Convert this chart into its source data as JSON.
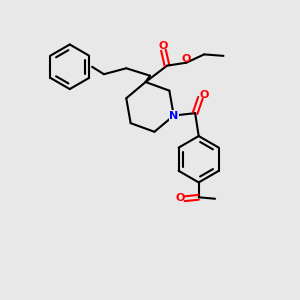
{
  "bg_color": "#e8e8e8",
  "bond_color": "#000000",
  "bond_width": 1.5,
  "N_color": "#0000ff",
  "O_color": "#ff0000",
  "figsize": [
    3.0,
    3.0
  ],
  "dpi": 100,
  "xlim": [
    0,
    10
  ],
  "ylim": [
    0,
    10
  ]
}
